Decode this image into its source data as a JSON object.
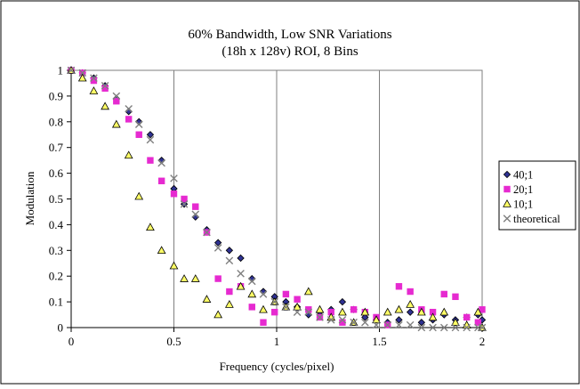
{
  "chart_data": {
    "type": "scatter",
    "title": "60% Bandwidth, Low SNR Variations",
    "subtitle": "(18h x 128v) ROI, 8 Bins",
    "xlabel": "Frequency (cycles/pixel)",
    "ylabel": "Modulation",
    "xlim": [
      0,
      2
    ],
    "ylim": [
      0,
      1
    ],
    "x_ticks": [
      "0",
      "0.5",
      "1",
      "1.5",
      "2"
    ],
    "x_tick_values": [
      0,
      0.5,
      1,
      1.5,
      2
    ],
    "y_ticks": [
      "0",
      "0.1",
      "0.2",
      "0.3",
      "0.4",
      "0.5",
      "0.6",
      "0.7",
      "0.8",
      "0.9",
      "1"
    ],
    "y_tick_values": [
      0,
      0.1,
      0.2,
      0.3,
      0.4,
      0.5,
      0.6,
      0.7,
      0.8,
      0.9,
      1
    ],
    "grid": "vertical major lines",
    "legend_position": "right",
    "series": [
      {
        "name": "40;1",
        "marker": "diamond",
        "color": "#2e3192",
        "points": [
          [
            0,
            1.0
          ],
          [
            0.055,
            0.99
          ],
          [
            0.11,
            0.97
          ],
          [
            0.165,
            0.94
          ],
          [
            0.22,
            0.89
          ],
          [
            0.28,
            0.84
          ],
          [
            0.33,
            0.8
          ],
          [
            0.385,
            0.75
          ],
          [
            0.44,
            0.65
          ],
          [
            0.5,
            0.54
          ],
          [
            0.55,
            0.48
          ],
          [
            0.605,
            0.43
          ],
          [
            0.66,
            0.38
          ],
          [
            0.715,
            0.33
          ],
          [
            0.77,
            0.3
          ],
          [
            0.825,
            0.27
          ],
          [
            0.88,
            0.19
          ],
          [
            0.935,
            0.14
          ],
          [
            0.99,
            0.12
          ],
          [
            1.045,
            0.1
          ],
          [
            1.1,
            0.08
          ],
          [
            1.155,
            0.05
          ],
          [
            1.21,
            0.06
          ],
          [
            1.265,
            0.07
          ],
          [
            1.32,
            0.1
          ],
          [
            1.375,
            0.07
          ],
          [
            1.43,
            0.04
          ],
          [
            1.485,
            0.03
          ],
          [
            1.54,
            0.02
          ],
          [
            1.595,
            0.03
          ],
          [
            1.65,
            0.06
          ],
          [
            1.705,
            0.02
          ],
          [
            1.76,
            0.03
          ],
          [
            1.815,
            0.05
          ],
          [
            1.87,
            0.03
          ],
          [
            1.925,
            0.04
          ],
          [
            1.98,
            0.05
          ],
          [
            2.0,
            0.03
          ]
        ]
      },
      {
        "name": "20;1",
        "marker": "square",
        "color": "#e62ad0",
        "points": [
          [
            0,
            1.0
          ],
          [
            0.055,
            0.99
          ],
          [
            0.11,
            0.96
          ],
          [
            0.165,
            0.93
          ],
          [
            0.22,
            0.88
          ],
          [
            0.28,
            0.81
          ],
          [
            0.33,
            0.75
          ],
          [
            0.385,
            0.65
          ],
          [
            0.44,
            0.57
          ],
          [
            0.5,
            0.52
          ],
          [
            0.55,
            0.5
          ],
          [
            0.605,
            0.47
          ],
          [
            0.66,
            0.37
          ],
          [
            0.715,
            0.19
          ],
          [
            0.77,
            0.14
          ],
          [
            0.825,
            0.16
          ],
          [
            0.88,
            0.08
          ],
          [
            0.935,
            0.02
          ],
          [
            0.99,
            0.06
          ],
          [
            1.045,
            0.13
          ],
          [
            1.1,
            0.11
          ],
          [
            1.155,
            0.07
          ],
          [
            1.21,
            0.04
          ],
          [
            1.265,
            0.06
          ],
          [
            1.32,
            0.02
          ],
          [
            1.375,
            0.07
          ],
          [
            1.43,
            0.06
          ],
          [
            1.485,
            0.04
          ],
          [
            1.54,
            0.01
          ],
          [
            1.595,
            0.16
          ],
          [
            1.65,
            0.14
          ],
          [
            1.705,
            0.07
          ],
          [
            1.76,
            0.06
          ],
          [
            1.815,
            0.13
          ],
          [
            1.87,
            0.12
          ],
          [
            1.925,
            0.04
          ],
          [
            1.98,
            0.02
          ],
          [
            2.0,
            0.07
          ]
        ]
      },
      {
        "name": "10;1",
        "marker": "triangle",
        "color": "#ffff66",
        "points": [
          [
            0,
            1.0
          ],
          [
            0.055,
            0.97
          ],
          [
            0.11,
            0.92
          ],
          [
            0.165,
            0.86
          ],
          [
            0.22,
            0.79
          ],
          [
            0.28,
            0.67
          ],
          [
            0.33,
            0.51
          ],
          [
            0.385,
            0.39
          ],
          [
            0.44,
            0.3
          ],
          [
            0.5,
            0.24
          ],
          [
            0.55,
            0.19
          ],
          [
            0.605,
            0.19
          ],
          [
            0.66,
            0.11
          ],
          [
            0.715,
            0.05
          ],
          [
            0.77,
            0.09
          ],
          [
            0.825,
            0.16
          ],
          [
            0.88,
            0.13
          ],
          [
            0.935,
            0.07
          ],
          [
            0.99,
            0.1
          ],
          [
            1.045,
            0.08
          ],
          [
            1.1,
            0.08
          ],
          [
            1.155,
            0.14
          ],
          [
            1.21,
            0.07
          ],
          [
            1.265,
            0.04
          ],
          [
            1.32,
            0.06
          ],
          [
            1.375,
            0.02
          ],
          [
            1.43,
            0.06
          ],
          [
            1.485,
            0.03
          ],
          [
            1.54,
            0.06
          ],
          [
            1.595,
            0.07
          ],
          [
            1.65,
            0.09
          ],
          [
            1.705,
            0.06
          ],
          [
            1.76,
            0.04
          ],
          [
            1.815,
            0.06
          ],
          [
            1.87,
            0.02
          ],
          [
            1.925,
            0.01
          ],
          [
            1.98,
            0.06
          ],
          [
            2.0,
            0.0
          ]
        ]
      },
      {
        "name": "theoretical",
        "marker": "x",
        "color": "#7f7f7f",
        "points": [
          [
            0,
            1.0
          ],
          [
            0.055,
            0.99
          ],
          [
            0.11,
            0.97
          ],
          [
            0.165,
            0.94
          ],
          [
            0.22,
            0.9
          ],
          [
            0.28,
            0.85
          ],
          [
            0.33,
            0.79
          ],
          [
            0.385,
            0.73
          ],
          [
            0.44,
            0.64
          ],
          [
            0.5,
            0.58
          ],
          [
            0.55,
            0.48
          ],
          [
            0.605,
            0.44
          ],
          [
            0.66,
            0.37
          ],
          [
            0.715,
            0.31
          ],
          [
            0.77,
            0.26
          ],
          [
            0.825,
            0.21
          ],
          [
            0.88,
            0.18
          ],
          [
            0.935,
            0.13
          ],
          [
            0.99,
            0.1
          ],
          [
            1.045,
            0.08
          ],
          [
            1.1,
            0.06
          ],
          [
            1.155,
            0.06
          ],
          [
            1.21,
            0.04
          ],
          [
            1.265,
            0.03
          ],
          [
            1.32,
            0.03
          ],
          [
            1.375,
            0.02
          ],
          [
            1.43,
            0.02
          ],
          [
            1.485,
            0.01
          ],
          [
            1.54,
            0.01
          ],
          [
            1.595,
            0.01
          ],
          [
            1.65,
            0.01
          ],
          [
            1.705,
            0.0
          ],
          [
            1.76,
            0.0
          ],
          [
            1.815,
            0.0
          ],
          [
            1.87,
            0.0
          ],
          [
            1.925,
            0.0
          ],
          [
            1.98,
            0.0
          ],
          [
            2.0,
            0.0
          ]
        ]
      }
    ]
  }
}
